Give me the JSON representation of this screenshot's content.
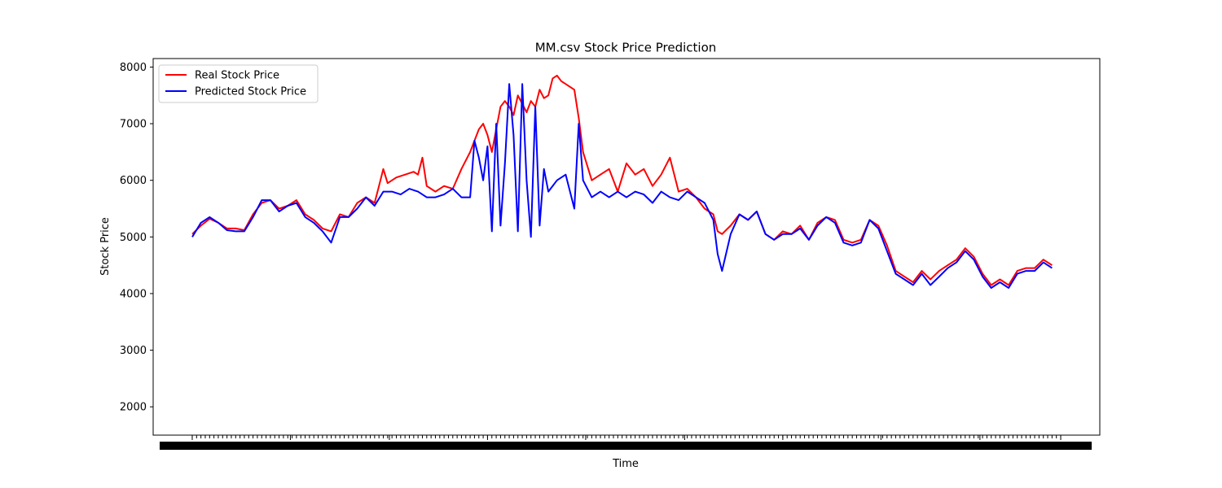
{
  "chart_data": {
    "type": "line",
    "title": "MM.csv Stock Price Prediction",
    "xlabel": "Time",
    "ylabel": "Stock Price",
    "ylim": [
      1500,
      8150
    ],
    "xlim": [
      -0.045,
      1.045
    ],
    "y_ticks": [
      2000,
      3000,
      4000,
      5000,
      6000,
      7000,
      8000
    ],
    "x_tick_positions": [
      0.0,
      0.113,
      0.227,
      0.34,
      0.453,
      0.567,
      0.68,
      0.793,
      0.907,
      1.0
    ],
    "legend_position": "upper left",
    "grid": false,
    "colors": {
      "real": "#ff0000",
      "predicted": "#0000ff"
    },
    "series": [
      {
        "name": "Real Stock Price",
        "key": "real",
        "points": [
          [
            0.0,
            5050
          ],
          [
            0.01,
            5200
          ],
          [
            0.02,
            5320
          ],
          [
            0.03,
            5250
          ],
          [
            0.04,
            5150
          ],
          [
            0.05,
            5150
          ],
          [
            0.06,
            5120
          ],
          [
            0.07,
            5400
          ],
          [
            0.08,
            5600
          ],
          [
            0.09,
            5650
          ],
          [
            0.1,
            5500
          ],
          [
            0.11,
            5550
          ],
          [
            0.12,
            5650
          ],
          [
            0.13,
            5400
          ],
          [
            0.14,
            5300
          ],
          [
            0.15,
            5150
          ],
          [
            0.16,
            5100
          ],
          [
            0.17,
            5400
          ],
          [
            0.18,
            5350
          ],
          [
            0.19,
            5600
          ],
          [
            0.2,
            5700
          ],
          [
            0.21,
            5600
          ],
          [
            0.215,
            5900
          ],
          [
            0.22,
            6200
          ],
          [
            0.225,
            5950
          ],
          [
            0.235,
            6050
          ],
          [
            0.245,
            6100
          ],
          [
            0.255,
            6150
          ],
          [
            0.26,
            6100
          ],
          [
            0.265,
            6400
          ],
          [
            0.27,
            5900
          ],
          [
            0.28,
            5800
          ],
          [
            0.29,
            5900
          ],
          [
            0.3,
            5850
          ],
          [
            0.31,
            6200
          ],
          [
            0.32,
            6500
          ],
          [
            0.33,
            6900
          ],
          [
            0.335,
            7000
          ],
          [
            0.34,
            6800
          ],
          [
            0.345,
            6500
          ],
          [
            0.35,
            6900
          ],
          [
            0.355,
            7300
          ],
          [
            0.36,
            7400
          ],
          [
            0.365,
            7300
          ],
          [
            0.37,
            7150
          ],
          [
            0.375,
            7500
          ],
          [
            0.38,
            7350
          ],
          [
            0.385,
            7200
          ],
          [
            0.39,
            7400
          ],
          [
            0.395,
            7300
          ],
          [
            0.4,
            7600
          ],
          [
            0.405,
            7450
          ],
          [
            0.41,
            7500
          ],
          [
            0.415,
            7800
          ],
          [
            0.42,
            7850
          ],
          [
            0.425,
            7750
          ],
          [
            0.43,
            7700
          ],
          [
            0.435,
            7650
          ],
          [
            0.44,
            7600
          ],
          [
            0.445,
            7100
          ],
          [
            0.45,
            6500
          ],
          [
            0.46,
            6000
          ],
          [
            0.47,
            6100
          ],
          [
            0.48,
            6200
          ],
          [
            0.49,
            5800
          ],
          [
            0.5,
            6300
          ],
          [
            0.51,
            6100
          ],
          [
            0.52,
            6200
          ],
          [
            0.53,
            5900
          ],
          [
            0.54,
            6100
          ],
          [
            0.55,
            6400
          ],
          [
            0.56,
            5800
          ],
          [
            0.57,
            5850
          ],
          [
            0.58,
            5700
          ],
          [
            0.59,
            5500
          ],
          [
            0.6,
            5400
          ],
          [
            0.605,
            5100
          ],
          [
            0.61,
            5050
          ],
          [
            0.62,
            5200
          ],
          [
            0.63,
            5400
          ],
          [
            0.64,
            5300
          ],
          [
            0.65,
            5450
          ],
          [
            0.66,
            5050
          ],
          [
            0.67,
            4950
          ],
          [
            0.68,
            5100
          ],
          [
            0.69,
            5050
          ],
          [
            0.7,
            5200
          ],
          [
            0.71,
            4950
          ],
          [
            0.72,
            5250
          ],
          [
            0.73,
            5350
          ],
          [
            0.74,
            5300
          ],
          [
            0.75,
            4950
          ],
          [
            0.76,
            4900
          ],
          [
            0.77,
            4950
          ],
          [
            0.78,
            5300
          ],
          [
            0.79,
            5200
          ],
          [
            0.8,
            4850
          ],
          [
            0.81,
            4400
          ],
          [
            0.82,
            4300
          ],
          [
            0.83,
            4200
          ],
          [
            0.84,
            4400
          ],
          [
            0.85,
            4250
          ],
          [
            0.86,
            4400
          ],
          [
            0.87,
            4500
          ],
          [
            0.88,
            4600
          ],
          [
            0.89,
            4800
          ],
          [
            0.9,
            4650
          ],
          [
            0.91,
            4350
          ],
          [
            0.92,
            4150
          ],
          [
            0.93,
            4250
          ],
          [
            0.94,
            4150
          ],
          [
            0.95,
            4400
          ],
          [
            0.96,
            4450
          ],
          [
            0.97,
            4450
          ],
          [
            0.98,
            4600
          ],
          [
            0.99,
            4500
          ]
        ]
      },
      {
        "name": "Predicted Stock Price",
        "key": "predicted",
        "points": [
          [
            0.0,
            5000
          ],
          [
            0.01,
            5250
          ],
          [
            0.02,
            5350
          ],
          [
            0.03,
            5250
          ],
          [
            0.04,
            5120
          ],
          [
            0.05,
            5100
          ],
          [
            0.06,
            5100
          ],
          [
            0.07,
            5350
          ],
          [
            0.08,
            5650
          ],
          [
            0.09,
            5650
          ],
          [
            0.1,
            5450
          ],
          [
            0.11,
            5550
          ],
          [
            0.12,
            5600
          ],
          [
            0.13,
            5350
          ],
          [
            0.14,
            5250
          ],
          [
            0.15,
            5100
          ],
          [
            0.16,
            4900
          ],
          [
            0.17,
            5350
          ],
          [
            0.18,
            5350
          ],
          [
            0.19,
            5500
          ],
          [
            0.2,
            5700
          ],
          [
            0.21,
            5550
          ],
          [
            0.22,
            5800
          ],
          [
            0.23,
            5800
          ],
          [
            0.24,
            5750
          ],
          [
            0.25,
            5850
          ],
          [
            0.26,
            5800
          ],
          [
            0.27,
            5700
          ],
          [
            0.28,
            5700
          ],
          [
            0.29,
            5750
          ],
          [
            0.3,
            5850
          ],
          [
            0.31,
            5700
          ],
          [
            0.32,
            5700
          ],
          [
            0.325,
            6700
          ],
          [
            0.33,
            6400
          ],
          [
            0.335,
            6000
          ],
          [
            0.34,
            6600
          ],
          [
            0.345,
            5100
          ],
          [
            0.35,
            7000
          ],
          [
            0.355,
            5200
          ],
          [
            0.36,
            6300
          ],
          [
            0.365,
            7700
          ],
          [
            0.37,
            6800
          ],
          [
            0.375,
            5100
          ],
          [
            0.38,
            7700
          ],
          [
            0.385,
            6000
          ],
          [
            0.39,
            5000
          ],
          [
            0.395,
            7300
          ],
          [
            0.4,
            5200
          ],
          [
            0.405,
            6200
          ],
          [
            0.41,
            5800
          ],
          [
            0.42,
            6000
          ],
          [
            0.43,
            6100
          ],
          [
            0.44,
            5500
          ],
          [
            0.445,
            7000
          ],
          [
            0.45,
            6000
          ],
          [
            0.46,
            5700
          ],
          [
            0.47,
            5800
          ],
          [
            0.48,
            5700
          ],
          [
            0.49,
            5800
          ],
          [
            0.5,
            5700
          ],
          [
            0.51,
            5800
          ],
          [
            0.52,
            5750
          ],
          [
            0.53,
            5600
          ],
          [
            0.54,
            5800
          ],
          [
            0.55,
            5700
          ],
          [
            0.56,
            5650
          ],
          [
            0.57,
            5800
          ],
          [
            0.58,
            5700
          ],
          [
            0.59,
            5600
          ],
          [
            0.6,
            5300
          ],
          [
            0.605,
            4700
          ],
          [
            0.61,
            4400
          ],
          [
            0.62,
            5050
          ],
          [
            0.63,
            5400
          ],
          [
            0.64,
            5300
          ],
          [
            0.65,
            5450
          ],
          [
            0.66,
            5050
          ],
          [
            0.67,
            4950
          ],
          [
            0.68,
            5050
          ],
          [
            0.69,
            5050
          ],
          [
            0.7,
            5150
          ],
          [
            0.71,
            4950
          ],
          [
            0.72,
            5200
          ],
          [
            0.73,
            5350
          ],
          [
            0.74,
            5250
          ],
          [
            0.75,
            4900
          ],
          [
            0.76,
            4850
          ],
          [
            0.77,
            4900
          ],
          [
            0.78,
            5300
          ],
          [
            0.79,
            5150
          ],
          [
            0.8,
            4750
          ],
          [
            0.81,
            4350
          ],
          [
            0.82,
            4250
          ],
          [
            0.83,
            4150
          ],
          [
            0.84,
            4350
          ],
          [
            0.85,
            4150
          ],
          [
            0.86,
            4300
          ],
          [
            0.87,
            4450
          ],
          [
            0.88,
            4550
          ],
          [
            0.89,
            4750
          ],
          [
            0.9,
            4600
          ],
          [
            0.91,
            4300
          ],
          [
            0.92,
            4100
          ],
          [
            0.93,
            4200
          ],
          [
            0.94,
            4100
          ],
          [
            0.95,
            4350
          ],
          [
            0.96,
            4400
          ],
          [
            0.97,
            4400
          ],
          [
            0.98,
            4550
          ],
          [
            0.99,
            4450
          ]
        ]
      }
    ]
  }
}
